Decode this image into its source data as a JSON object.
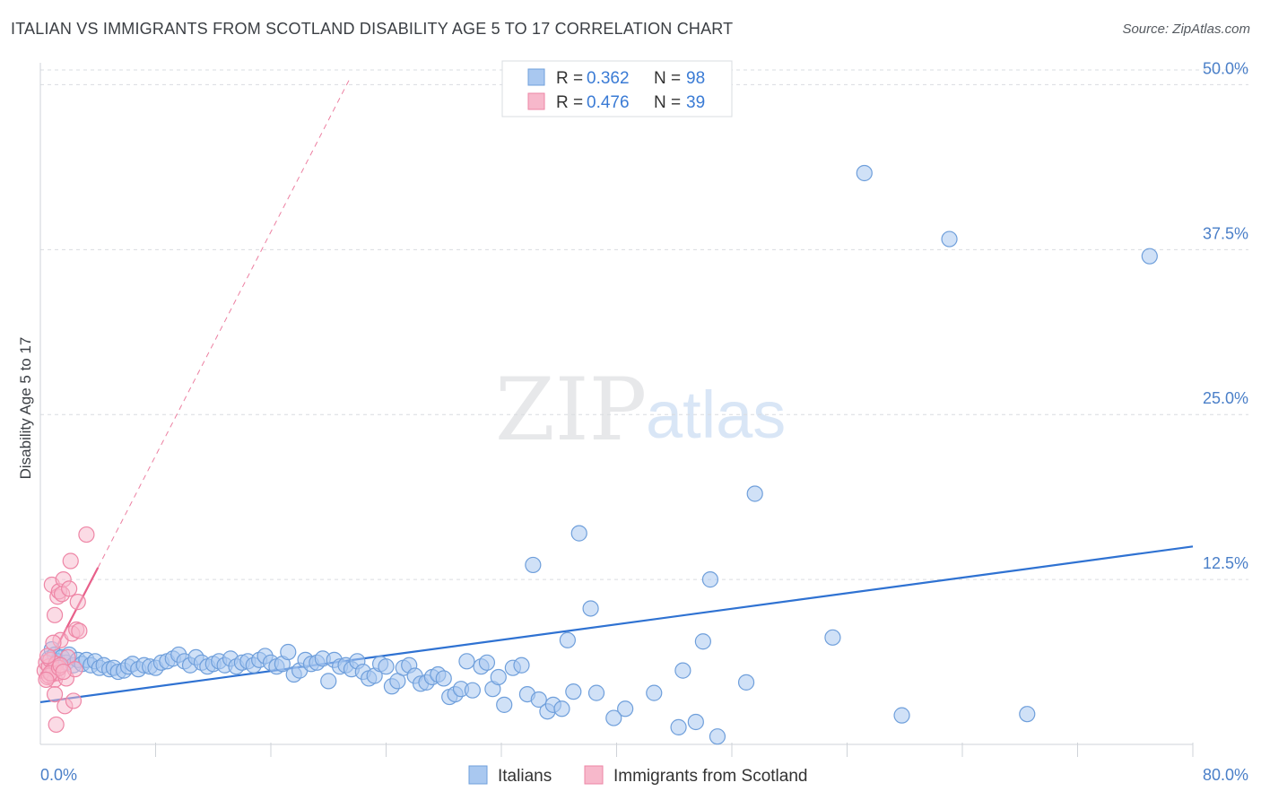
{
  "title": "ITALIAN VS IMMIGRANTS FROM SCOTLAND DISABILITY AGE 5 TO 17 CORRELATION CHART",
  "source": "Source: ZipAtlas.com",
  "watermark": {
    "zip": "ZIP",
    "atlas": "atlas"
  },
  "chart_data": {
    "type": "scatter",
    "ylabel": "Disability Age 5 to 17",
    "xlabel": "",
    "xlim": [
      0,
      80
    ],
    "ylim": [
      0,
      52
    ],
    "x_tick_labels": [
      "0.0%",
      "80.0%"
    ],
    "y_ticks": [
      12.5,
      25.0,
      37.5,
      50.0
    ],
    "y_tick_labels": [
      "12.5%",
      "25.0%",
      "37.5%",
      "50.0%"
    ],
    "grid": "horizontal dashed",
    "legend_position": "top-center",
    "legend": {
      "rows": [
        {
          "r_label": "R = ",
          "r_value": "0.362",
          "n_label": "N = ",
          "n_value": "98"
        },
        {
          "r_label": "R = ",
          "r_value": "0.476",
          "n_label": "N = ",
          "n_value": "39"
        }
      ]
    },
    "bottom_legend": [
      "Italians",
      "Immigrants from Scotland"
    ],
    "colors": {
      "italians_fill": "#a9c8f0",
      "italians_stroke": "#6f9fdb",
      "italians_line": "#2f72d2",
      "scotland_fill": "#f7b8cb",
      "scotland_stroke": "#ee86a6",
      "scotland_line": "#e8608a",
      "tick_text": "#4a7fc8",
      "grid": "#d9dce0"
    },
    "series": [
      {
        "name": "Italians",
        "trend": {
          "x": [
            0,
            80
          ],
          "y": [
            3.2,
            15.0
          ]
        },
        "points": [
          [
            0.6,
            6.5
          ],
          [
            0.8,
            7.2
          ],
          [
            1.0,
            6.8
          ],
          [
            1.2,
            6.3
          ],
          [
            1.5,
            6.6
          ],
          [
            1.8,
            6.2
          ],
          [
            2.0,
            6.8
          ],
          [
            2.3,
            6.0
          ],
          [
            2.6,
            6.4
          ],
          [
            2.9,
            6.1
          ],
          [
            3.2,
            6.4
          ],
          [
            3.5,
            6.0
          ],
          [
            3.8,
            6.3
          ],
          [
            4.1,
            5.8
          ],
          [
            4.4,
            6.0
          ],
          [
            4.8,
            5.7
          ],
          [
            5.1,
            5.8
          ],
          [
            5.4,
            5.5
          ],
          [
            5.8,
            5.6
          ],
          [
            6.1,
            5.9
          ],
          [
            6.4,
            6.1
          ],
          [
            6.8,
            5.7
          ],
          [
            7.2,
            6.0
          ],
          [
            7.6,
            5.9
          ],
          [
            8.0,
            5.8
          ],
          [
            8.4,
            6.2
          ],
          [
            8.8,
            6.3
          ],
          [
            9.2,
            6.5
          ],
          [
            9.6,
            6.8
          ],
          [
            10.0,
            6.3
          ],
          [
            10.4,
            6.0
          ],
          [
            10.8,
            6.6
          ],
          [
            11.2,
            6.2
          ],
          [
            11.6,
            5.9
          ],
          [
            12.0,
            6.1
          ],
          [
            12.4,
            6.3
          ],
          [
            12.8,
            6.0
          ],
          [
            13.2,
            6.5
          ],
          [
            13.6,
            5.9
          ],
          [
            14.0,
            6.2
          ],
          [
            14.4,
            6.3
          ],
          [
            14.8,
            6.0
          ],
          [
            15.2,
            6.4
          ],
          [
            15.6,
            6.7
          ],
          [
            16.0,
            6.2
          ],
          [
            16.4,
            5.9
          ],
          [
            16.8,
            6.1
          ],
          [
            17.2,
            7.0
          ],
          [
            17.6,
            5.3
          ],
          [
            18.0,
            5.6
          ],
          [
            18.4,
            6.4
          ],
          [
            18.8,
            6.1
          ],
          [
            19.2,
            6.2
          ],
          [
            19.6,
            6.5
          ],
          [
            20.0,
            4.8
          ],
          [
            20.4,
            6.4
          ],
          [
            20.8,
            5.9
          ],
          [
            21.2,
            6.0
          ],
          [
            21.6,
            5.7
          ],
          [
            22.0,
            6.3
          ],
          [
            22.4,
            5.5
          ],
          [
            22.8,
            5.0
          ],
          [
            23.2,
            5.2
          ],
          [
            23.6,
            6.1
          ],
          [
            24.0,
            5.9
          ],
          [
            24.4,
            4.4
          ],
          [
            24.8,
            4.8
          ],
          [
            25.2,
            5.8
          ],
          [
            25.6,
            6.0
          ],
          [
            26.0,
            5.2
          ],
          [
            26.4,
            4.6
          ],
          [
            26.8,
            4.7
          ],
          [
            27.2,
            5.1
          ],
          [
            27.6,
            5.3
          ],
          [
            28.0,
            5.0
          ],
          [
            28.4,
            3.6
          ],
          [
            28.8,
            3.8
          ],
          [
            29.2,
            4.2
          ],
          [
            29.6,
            6.3
          ],
          [
            30.0,
            4.1
          ],
          [
            30.6,
            5.9
          ],
          [
            31.0,
            6.2
          ],
          [
            31.4,
            4.2
          ],
          [
            31.8,
            5.1
          ],
          [
            32.2,
            3.0
          ],
          [
            32.8,
            5.8
          ],
          [
            33.4,
            6.0
          ],
          [
            33.8,
            3.8
          ],
          [
            34.2,
            13.6
          ],
          [
            34.6,
            3.4
          ],
          [
            35.2,
            2.5
          ],
          [
            35.6,
            3.0
          ],
          [
            36.2,
            2.7
          ],
          [
            36.6,
            7.9
          ],
          [
            37.0,
            4.0
          ],
          [
            37.4,
            16.0
          ],
          [
            38.2,
            10.3
          ],
          [
            38.6,
            3.9
          ]
        ]
      },
      {
        "name": "Immigrants from Scotland",
        "trend": {
          "x": [
            0,
            4.0
          ],
          "y": [
            5.0,
            13.4
          ]
        },
        "trend_dashed": {
          "x": [
            4.0,
            21.5
          ],
          "y": [
            13.4,
            50.5
          ]
        },
        "points": [
          [
            0.3,
            5.6
          ],
          [
            0.4,
            6.2
          ],
          [
            0.5,
            5.1
          ],
          [
            0.6,
            5.9
          ],
          [
            0.7,
            6.4
          ],
          [
            0.8,
            5.3
          ],
          [
            0.9,
            5.7
          ],
          [
            1.0,
            4.9
          ],
          [
            1.1,
            6.1
          ],
          [
            1.2,
            5.4
          ],
          [
            0.8,
            12.1
          ],
          [
            1.0,
            9.8
          ],
          [
            1.2,
            11.2
          ],
          [
            1.3,
            11.6
          ],
          [
            1.4,
            7.9
          ],
          [
            1.5,
            11.4
          ],
          [
            1.6,
            12.5
          ],
          [
            1.7,
            2.9
          ],
          [
            1.8,
            5.0
          ],
          [
            1.9,
            6.6
          ],
          [
            2.0,
            11.8
          ],
          [
            2.1,
            13.9
          ],
          [
            2.2,
            8.4
          ],
          [
            2.3,
            3.3
          ],
          [
            2.4,
            5.7
          ],
          [
            2.5,
            8.7
          ],
          [
            2.6,
            10.8
          ],
          [
            2.7,
            8.6
          ],
          [
            0.5,
            6.7
          ],
          [
            0.6,
            5.2
          ],
          [
            0.7,
            5.4
          ],
          [
            0.9,
            7.7
          ],
          [
            1.0,
            3.8
          ],
          [
            1.1,
            1.5
          ],
          [
            1.3,
            5.8
          ],
          [
            1.4,
            6.0
          ],
          [
            1.6,
            5.5
          ],
          [
            3.2,
            15.9
          ],
          [
            0.4,
            4.9
          ]
        ]
      }
    ]
  }
}
